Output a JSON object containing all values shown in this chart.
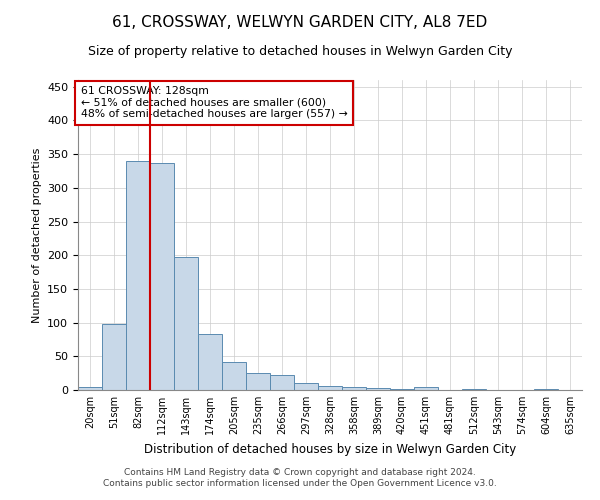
{
  "title": "61, CROSSWAY, WELWYN GARDEN CITY, AL8 7ED",
  "subtitle": "Size of property relative to detached houses in Welwyn Garden City",
  "xlabel": "Distribution of detached houses by size in Welwyn Garden City",
  "ylabel": "Number of detached properties",
  "footer_line1": "Contains HM Land Registry data © Crown copyright and database right 2024.",
  "footer_line2": "Contains public sector information licensed under the Open Government Licence v3.0.",
  "annotation_line1": "61 CROSSWAY: 128sqm",
  "annotation_line2": "← 51% of detached houses are smaller (600)",
  "annotation_line3": "48% of semi-detached houses are larger (557) →",
  "bar_color": "#c8d8e8",
  "bar_edge_color": "#5a8ab0",
  "vline_color": "#cc0000",
  "annotation_box_edge_color": "#cc0000",
  "categories": [
    "20sqm",
    "51sqm",
    "82sqm",
    "112sqm",
    "143sqm",
    "174sqm",
    "205sqm",
    "235sqm",
    "266sqm",
    "297sqm",
    "328sqm",
    "358sqm",
    "389sqm",
    "420sqm",
    "451sqm",
    "481sqm",
    "512sqm",
    "543sqm",
    "574sqm",
    "604sqm",
    "635sqm"
  ],
  "values": [
    5,
    98,
    340,
    337,
    197,
    83,
    42,
    25,
    22,
    10,
    6,
    4,
    3,
    1,
    4,
    0,
    1,
    0,
    0,
    1,
    0
  ],
  "ylim": [
    0,
    460
  ],
  "yticks": [
    0,
    50,
    100,
    150,
    200,
    250,
    300,
    350,
    400,
    450
  ],
  "vline_x_index": 3,
  "figsize": [
    6.0,
    5.0
  ],
  "dpi": 100
}
